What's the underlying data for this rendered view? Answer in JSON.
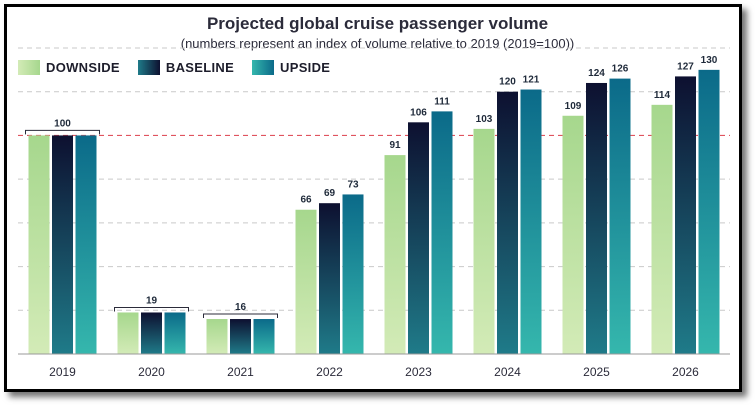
{
  "chart_data": {
    "type": "bar",
    "title": "Projected global cruise passenger volume",
    "subtitle": "(numbers represent an index of volume relative to 2019 (2019=100))",
    "categories": [
      "2019",
      "2020",
      "2021",
      "2022",
      "2023",
      "2024",
      "2025",
      "2026"
    ],
    "series": [
      {
        "name": "DOWNSIDE",
        "values": [
          100,
          19,
          16,
          66,
          91,
          103,
          109,
          114
        ],
        "color_top": "#a6d78d",
        "color_bottom": "#d3ebb7"
      },
      {
        "name": "BASELINE",
        "values": [
          100,
          19,
          16,
          69,
          106,
          120,
          124,
          127
        ],
        "color_top": "#0d1030",
        "color_bottom": "#1f7b89"
      },
      {
        "name": "UPSIDE",
        "values": [
          100,
          19,
          16,
          73,
          111,
          121,
          126,
          130
        ],
        "color_top": "#0b6a89",
        "color_bottom": "#35b7ad"
      }
    ],
    "group_labels": [
      {
        "category": "2019",
        "label": "100"
      },
      {
        "category": "2020",
        "label": "19"
      },
      {
        "category": "2021",
        "label": "16"
      }
    ],
    "reference_line": {
      "value": 100,
      "color": "#e0545f"
    },
    "ylim": [
      0,
      140
    ],
    "grid": true,
    "legend_position": "top-left",
    "xlabel": "",
    "ylabel": ""
  }
}
